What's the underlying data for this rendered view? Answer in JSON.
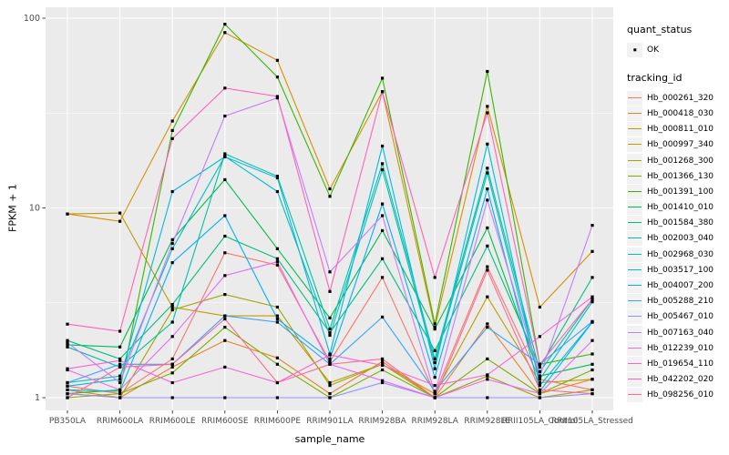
{
  "legend": {
    "quant_status_title": "quant_status",
    "quant_status_items": [
      {
        "label": "OK",
        "symbol": "point",
        "color": "#000000"
      }
    ],
    "tracking_id_title": "tracking_id"
  },
  "style": {
    "panel_bg": "#EBEBEB",
    "grid_color": "#FFFFFF",
    "tick_text_color": "#4D4D4D",
    "point_color": "#000000",
    "legend_key_bg": "#F2F2F2"
  },
  "chart_data": {
    "type": "line",
    "title": "",
    "xlabel": "sample_name",
    "ylabel": "FPKM + 1",
    "y_scale": "log10",
    "y_ticks": [
      1,
      10,
      100
    ],
    "y_minor_ticks": [
      3.162,
      31.62
    ],
    "ylim": [
      0.95,
      110
    ],
    "grid": true,
    "legend_position": "right",
    "categories": [
      "PB350LA",
      "RRIM600LA",
      "RRIM600LE",
      "RRIM600SE",
      "RRIM600PE",
      "RRIM901LA",
      "RRIM928BA",
      "RRIM928LA",
      "RRIM928LE",
      "RRII105LA_Control",
      "RRII105LA_Stressed"
    ],
    "series": [
      {
        "name": "Hb_000261_320",
        "color": "#F8766D",
        "values": [
          1.15,
          1.05,
          1.6,
          5.8,
          5.0,
          1.55,
          4.3,
          1.05,
          4.9,
          1.25,
          1.1
        ]
      },
      {
        "name": "Hb_000418_030",
        "color": "#EA8331",
        "values": [
          1.1,
          1.0,
          1.45,
          2.0,
          1.62,
          1.05,
          1.55,
          1.0,
          2.45,
          1.05,
          1.25
        ]
      },
      {
        "name": "Hb_000811_010",
        "color": "#D89000",
        "values": [
          9.3,
          8.5,
          28.7,
          84.0,
          60.0,
          12.6,
          41.0,
          2.35,
          34.3,
          3.0,
          5.9
        ]
      },
      {
        "name": "Hb_000997_340",
        "color": "#C09B00",
        "values": [
          9.3,
          9.4,
          3.0,
          2.7,
          2.7,
          1.2,
          1.5,
          1.05,
          3.4,
          1.2,
          1.25
        ]
      },
      {
        "name": "Hb_001268_300",
        "color": "#A3A500",
        "values": [
          1.05,
          1.0,
          2.9,
          3.5,
          3.0,
          1.16,
          1.5,
          1.0,
          1.3,
          1.0,
          1.1
        ]
      },
      {
        "name": "Hb_001366_130",
        "color": "#7CAE00",
        "values": [
          1.0,
          1.05,
          1.35,
          2.35,
          1.5,
          1.0,
          1.4,
          1.0,
          1.6,
          1.05,
          1.4
        ]
      },
      {
        "name": "Hb_001391_100",
        "color": "#39B600",
        "values": [
          1.05,
          1.1,
          25.6,
          93.0,
          49.0,
          11.5,
          48.3,
          2.45,
          52.4,
          1.5,
          1.7
        ]
      },
      {
        "name": "Hb_001410_010",
        "color": "#00BB4E",
        "values": [
          1.9,
          1.85,
          6.8,
          14.1,
          6.1,
          2.63,
          7.6,
          2.3,
          7.85,
          1.3,
          1.5
        ]
      },
      {
        "name": "Hb_001584_380",
        "color": "#00BF7D",
        "values": [
          2.0,
          1.6,
          3.1,
          7.1,
          5.4,
          2.2,
          5.4,
          1.77,
          6.3,
          1.45,
          4.3
        ]
      },
      {
        "name": "Hb_002003_040",
        "color": "#00C1A3",
        "values": [
          1.85,
          1.45,
          2.5,
          19.3,
          14.7,
          2.3,
          17.1,
          1.6,
          16.2,
          1.37,
          3.3
        ]
      },
      {
        "name": "Hb_002968_030",
        "color": "#00BFC4",
        "values": [
          1.2,
          1.3,
          6.1,
          18.7,
          12.2,
          2.13,
          15.9,
          1.53,
          15.3,
          1.25,
          3.2
        ]
      },
      {
        "name": "Hb_003517_100",
        "color": "#00BAE0",
        "values": [
          1.15,
          1.25,
          12.2,
          18.6,
          14.4,
          1.7,
          21.2,
          1.42,
          21.7,
          1.16,
          2.5
        ]
      },
      {
        "name": "Hb_004007_200",
        "color": "#00B0F6",
        "values": [
          1.1,
          1.08,
          5.15,
          9.1,
          2.6,
          1.6,
          10.5,
          1.28,
          12.6,
          1.08,
          2.5
        ]
      },
      {
        "name": "Hb_005288_210",
        "color": "#35A2FF",
        "values": [
          1.2,
          1.5,
          1.5,
          2.7,
          2.5,
          1.5,
          2.66,
          1.08,
          2.35,
          1.5,
          2.52
        ]
      },
      {
        "name": "Hb_005467_010",
        "color": "#9590FF",
        "values": [
          1.05,
          1.0,
          1.0,
          1.0,
          1.0,
          1.0,
          1.2,
          1.0,
          1.0,
          1.0,
          1.05
        ]
      },
      {
        "name": "Hb_007163_040",
        "color": "#C77CFF",
        "values": [
          1.95,
          1.2,
          6.5,
          30.5,
          38.0,
          4.6,
          9.1,
          1.05,
          11.0,
          1.3,
          8.1
        ]
      },
      {
        "name": "Hb_012239_010",
        "color": "#E76BF3",
        "values": [
          1.4,
          1.1,
          2.1,
          4.4,
          5.2,
          1.5,
          1.23,
          1.0,
          1.25,
          1.05,
          2.0
        ]
      },
      {
        "name": "Hb_019654_110",
        "color": "#FA62DB",
        "values": [
          1.42,
          1.57,
          1.2,
          1.45,
          1.2,
          1.68,
          1.48,
          1.16,
          1.32,
          2.1,
          3.4
        ]
      },
      {
        "name": "Hb_042202_020",
        "color": "#FF62BC",
        "values": [
          2.44,
          2.24,
          23.2,
          42.8,
          38.7,
          3.63,
          41.0,
          4.3,
          31.7,
          1.5,
          3.3
        ]
      },
      {
        "name": "Hb_098256_010",
        "color": "#FF6A98",
        "values": [
          1.0,
          1.45,
          1.5,
          2.6,
          1.2,
          1.5,
          1.6,
          1.0,
          4.7,
          1.1,
          1.05
        ]
      }
    ]
  }
}
